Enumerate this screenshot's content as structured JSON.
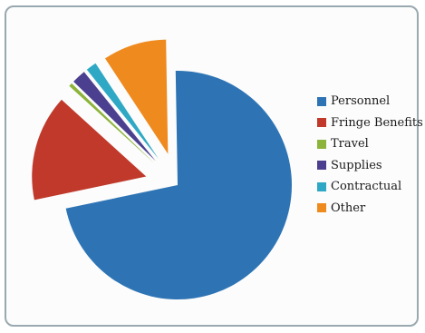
{
  "chart_data": {
    "type": "pie",
    "title": "",
    "exploded": true,
    "legend_placement": "right",
    "slices": [
      {
        "name": "Personnel",
        "value": 72.0,
        "color": "#2e74b5"
      },
      {
        "name": "Fringe Benefits",
        "value": 15.0,
        "color": "#c0392b"
      },
      {
        "name": "Travel",
        "value": 0.5,
        "color": "#8cb33a"
      },
      {
        "name": "Supplies",
        "value": 2.0,
        "color": "#4b3f8f"
      },
      {
        "name": "Contractual",
        "value": 1.5,
        "color": "#2ea8c4"
      },
      {
        "name": "Other",
        "value": 9.0,
        "color": "#ef8a1f"
      }
    ]
  }
}
